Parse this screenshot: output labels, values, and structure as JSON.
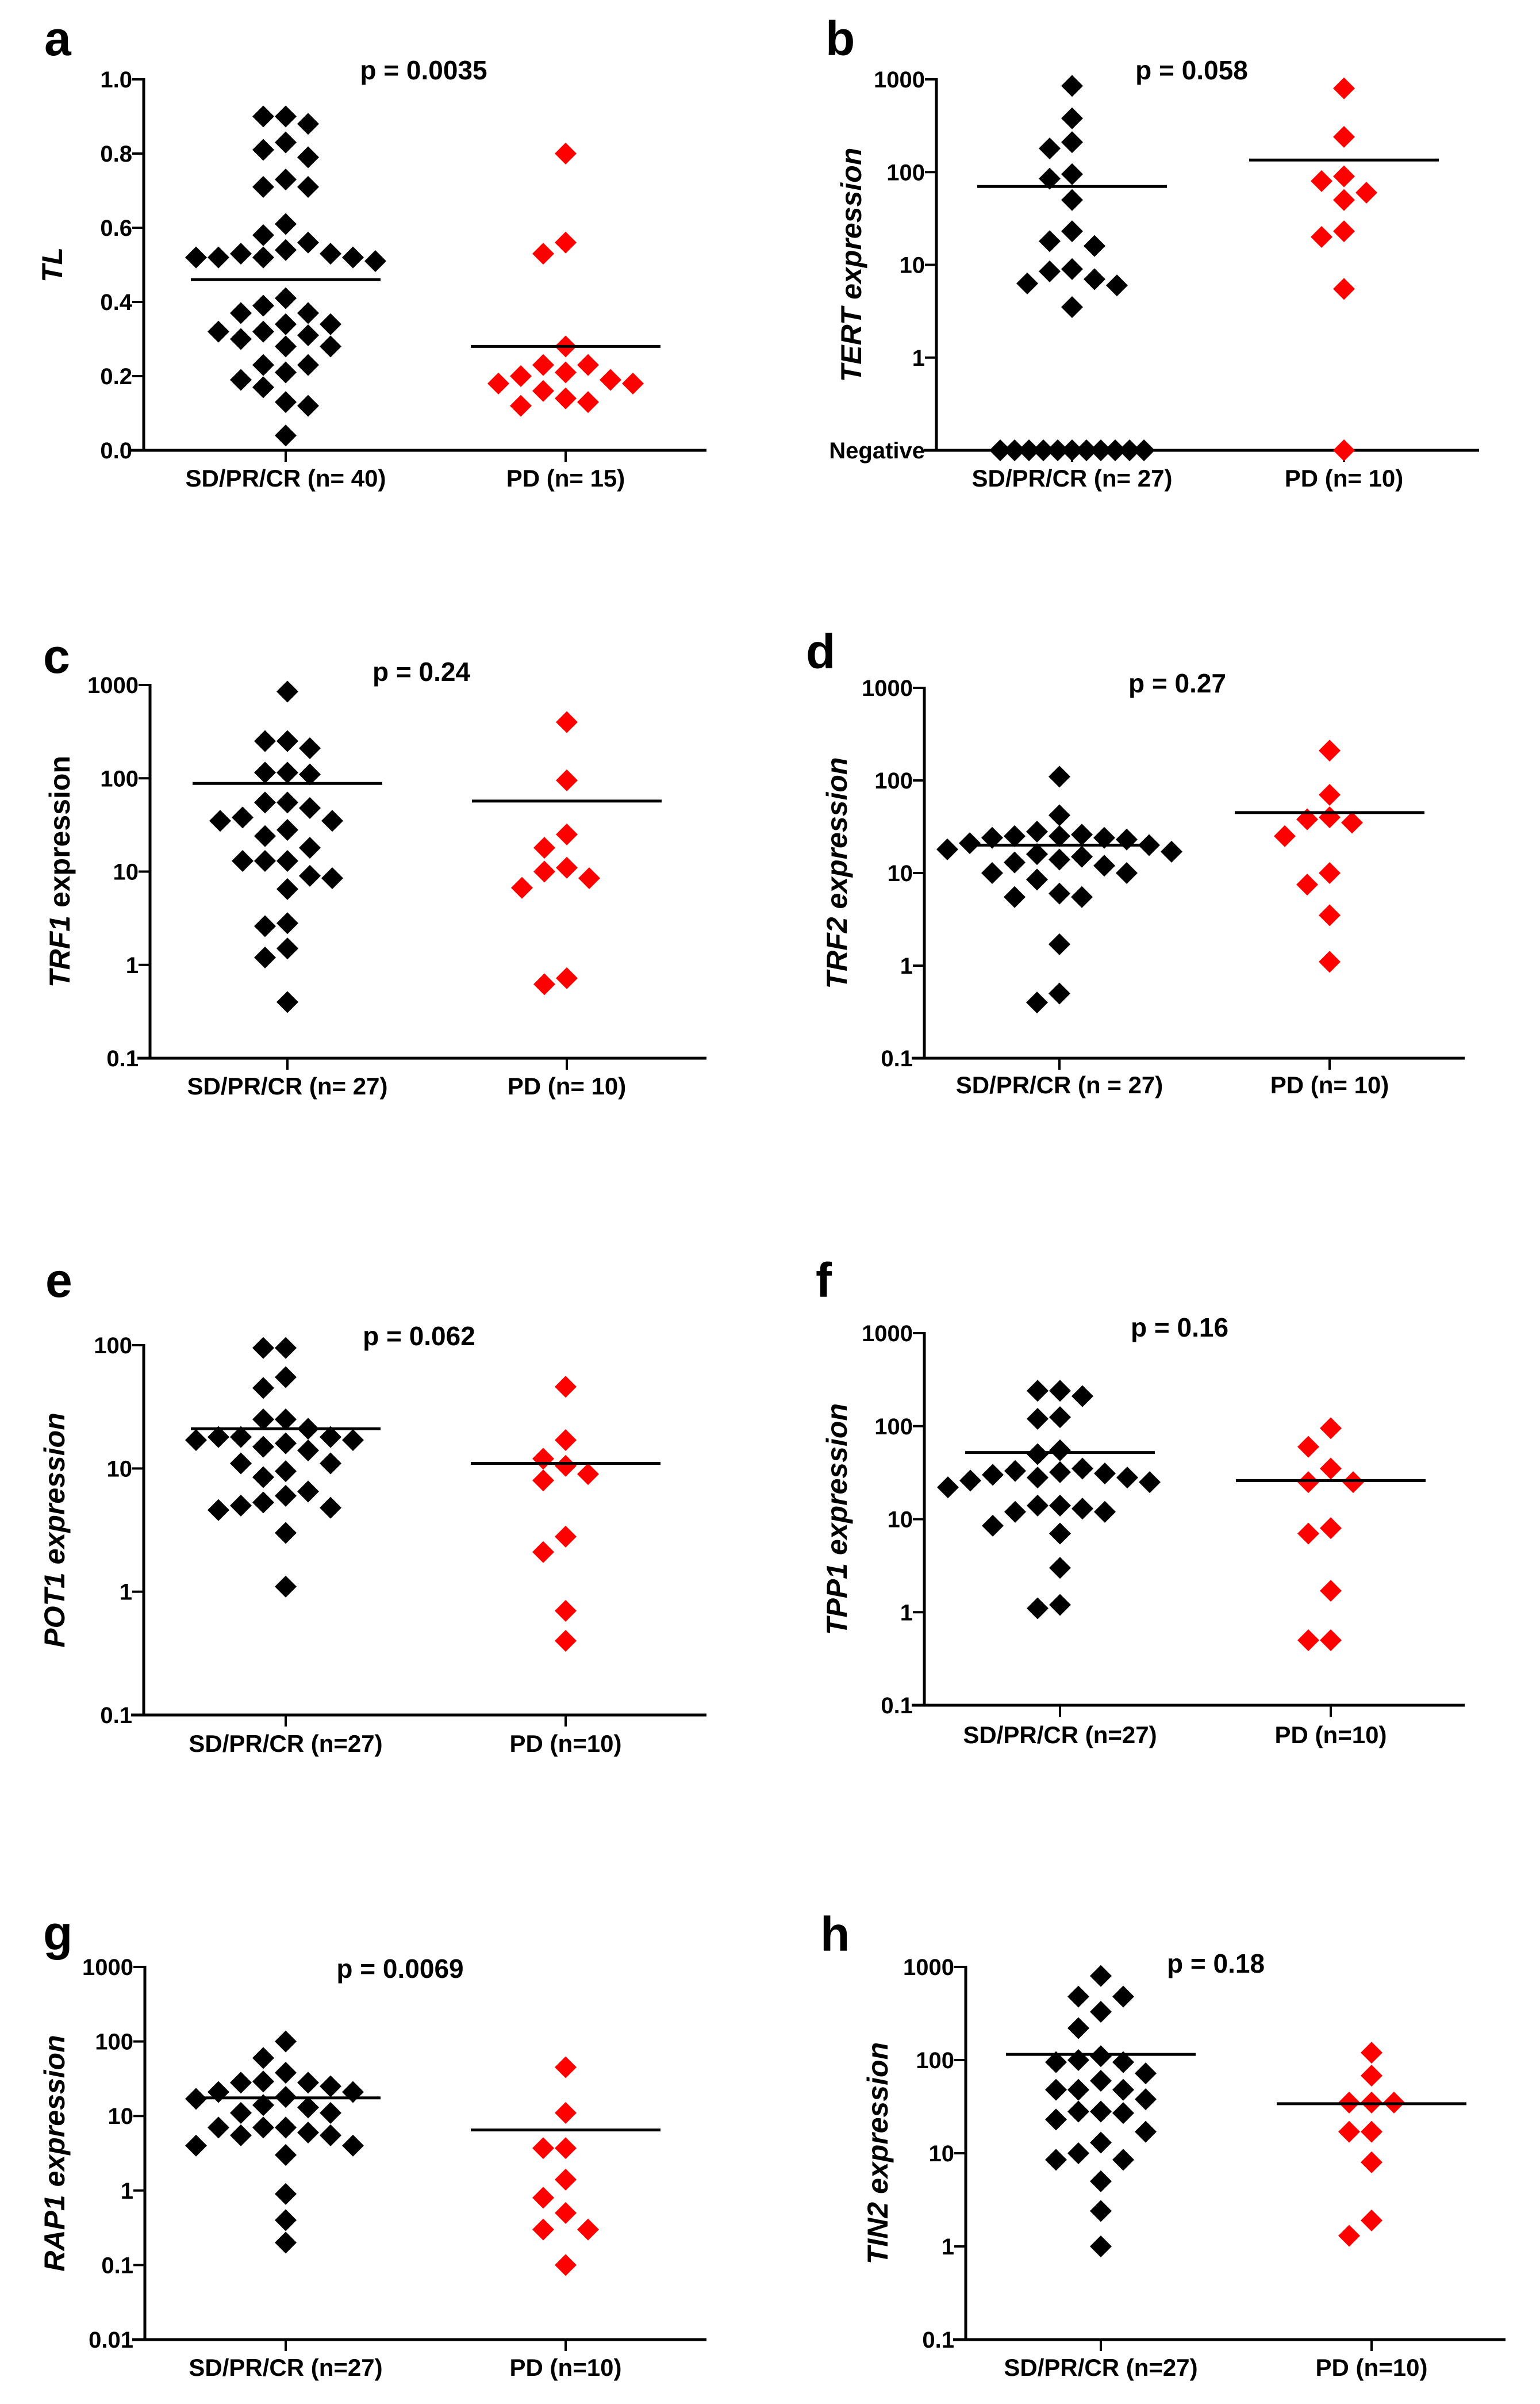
{
  "chart_data": [
    {
      "type": "scatter",
      "panel_label": "a",
      "p_value": "p = 0.0035",
      "ylabel": {
        "gene": "TL",
        "suffix": ""
      },
      "scale": "linear",
      "ylim": [
        0,
        1.0
      ],
      "yticks": [
        0,
        0.2,
        0.4,
        0.6,
        0.8,
        1.0
      ],
      "ytick_labels": [
        "0.0",
        "0.2",
        "0.4",
        "0.6",
        "0.8",
        "1.0"
      ],
      "categories": [
        "SD/PR/CR (n= 40)",
        "PD (n= 15)"
      ],
      "groups": [
        {
          "name": "SD/PR/CR",
          "color": "#000000",
          "mean": 0.46,
          "values": [
            0.9,
            0.88,
            0.9,
            0.83,
            0.79,
            0.81,
            0.71,
            0.71,
            0.73,
            0.61,
            0.58,
            0.56,
            0.54,
            0.53,
            0.52,
            0.52,
            0.51,
            0.52,
            0.52,
            0.53,
            0.41,
            0.39,
            0.37,
            0.37,
            0.34,
            0.34,
            0.32,
            0.31,
            0.28,
            0.28,
            0.3,
            0.32,
            0.23,
            0.19,
            0.21,
            0.23,
            0.17,
            0.13,
            0.12,
            0.04
          ]
        },
        {
          "name": "PD",
          "color": "#ff0000",
          "mean": 0.28,
          "values": [
            0.8,
            0.56,
            0.53,
            0.28,
            0.23,
            0.2,
            0.18,
            0.18,
            0.19,
            0.21,
            0.23,
            0.14,
            0.12,
            0.13,
            0.16
          ]
        }
      ]
    },
    {
      "type": "scatter",
      "panel_label": "b",
      "p_value": "p = 0.058",
      "ylabel": {
        "gene": "TERT",
        "suffix": " expression"
      },
      "scale": "log",
      "ylim": [
        0.1,
        1000
      ],
      "yticks": [
        1,
        10,
        100,
        1000
      ],
      "ytick_labels": [
        "1",
        "10",
        "100",
        "1000"
      ],
      "negative_label": "Negative",
      "categories": [
        "SD/PR/CR (n= 27)",
        "PD (n= 10)"
      ],
      "groups": [
        {
          "name": "SD/PR/CR",
          "color": "#000000",
          "mean": 70,
          "values": [
            850,
            380,
            180,
            210,
            95,
            85,
            50,
            18,
            16,
            23,
            8.5,
            6,
            6.3,
            7,
            9,
            3.5,
            null,
            null,
            null,
            null,
            null,
            null,
            null,
            null,
            null,
            null,
            null
          ]
        },
        {
          "name": "PD",
          "color": "#ff0000",
          "mean": 135,
          "values": [
            800,
            240,
            90,
            80,
            60,
            50,
            20,
            23,
            5.5,
            null
          ]
        }
      ]
    },
    {
      "type": "scatter",
      "panel_label": "c",
      "p_value": "p = 0.24",
      "ylabel": {
        "gene": "TRF1",
        "suffix": " expression"
      },
      "scale": "log",
      "ylim": [
        0.1,
        1000
      ],
      "yticks": [
        0.1,
        1,
        10,
        100,
        1000
      ],
      "ytick_labels": [
        "0.1",
        "1",
        "10",
        "100",
        "1000"
      ],
      "categories": [
        "SD/PR/CR (n= 27)",
        "PD (n= 10)"
      ],
      "groups": [
        {
          "name": "SD/PR/CR",
          "color": "#000000",
          "mean": 88,
          "values": [
            850,
            250,
            210,
            250,
            115,
            110,
            115,
            55,
            48,
            55,
            35,
            28,
            24,
            35,
            38,
            18,
            13,
            13,
            13,
            8.5,
            6.5,
            9,
            2.6,
            2.8,
            1.5,
            1.2,
            0.4
          ]
        },
        {
          "name": "PD",
          "color": "#ff0000",
          "mean": 57,
          "values": [
            400,
            95,
            25,
            18,
            11,
            8.5,
            6.7,
            10,
            0.62,
            0.72
          ]
        }
      ]
    },
    {
      "type": "scatter",
      "panel_label": "d",
      "p_value": "p = 0.27",
      "ylabel": {
        "gene": "TRF2",
        "suffix": " expression"
      },
      "scale": "log",
      "ylim": [
        0.1,
        1000
      ],
      "yticks": [
        0.1,
        1,
        10,
        100,
        1000
      ],
      "ytick_labels": [
        "0.1",
        "1",
        "10",
        "100",
        "1000"
      ],
      "categories": [
        "SD/PR/CR (n = 27)",
        "PD (n= 10)"
      ],
      "groups": [
        {
          "name": "SD/PR/CR",
          "color": "#000000",
          "mean": 20,
          "values": [
            110,
            42,
            25,
            24,
            23,
            25,
            28,
            26,
            24,
            20,
            21,
            16,
            15,
            13,
            17,
            14,
            10,
            10,
            12,
            8.5,
            6,
            5.5,
            5.5,
            1.7,
            0.4,
            0.5,
            18
          ]
        },
        {
          "name": "PD",
          "color": "#ff0000",
          "mean": 45,
          "values": [
            210,
            70,
            40,
            35,
            38,
            25,
            10,
            7.5,
            3.5,
            1.1
          ]
        }
      ]
    },
    {
      "type": "scatter",
      "panel_label": "e",
      "p_value": "p = 0.062",
      "ylabel": {
        "gene": "POT1",
        "suffix": " expression"
      },
      "scale": "log",
      "ylim": [
        0.1,
        100
      ],
      "yticks": [
        0.1,
        1,
        10,
        100
      ],
      "ytick_labels": [
        "0.1",
        "1",
        "10",
        "100"
      ],
      "categories": [
        "SD/PR/CR (n=27)",
        "PD (n=10)"
      ],
      "groups": [
        {
          "name": "SD/PR/CR",
          "color": "#000000",
          "mean": 21,
          "values": [
            95,
            95,
            55,
            45,
            25,
            25,
            21,
            18,
            18,
            18,
            17,
            17,
            16,
            15,
            14,
            11,
            11,
            9.5,
            8.5,
            6,
            6.5,
            5,
            4.8,
            4.6,
            5.3,
            3,
            1.1
          ]
        },
        {
          "name": "PD",
          "color": "#ff0000",
          "mean": 11,
          "values": [
            46,
            17,
            12,
            9,
            8,
            10.5,
            2.8,
            2.1,
            0.7,
            0.4
          ]
        }
      ]
    },
    {
      "type": "scatter",
      "panel_label": "f",
      "p_value": "p = 0.16",
      "ylabel": {
        "gene": "TPP1",
        "suffix": " expression"
      },
      "scale": "log",
      "ylim": [
        0.1,
        1000
      ],
      "yticks": [
        0.1,
        1,
        10,
        100,
        1000
      ],
      "ytick_labels": [
        "0.1",
        "1",
        "10",
        "100",
        "1000"
      ],
      "categories": [
        "SD/PR/CR (n=27)",
        "PD (n=10)"
      ],
      "groups": [
        {
          "name": "SD/PR/CR",
          "color": "#000000",
          "mean": 52,
          "values": [
            240,
            210,
            240,
            120,
            125,
            55,
            50,
            35,
            33,
            32,
            30,
            28,
            25,
            26,
            28,
            31,
            22,
            14,
            12,
            13,
            14,
            12,
            8.5,
            7,
            3,
            1.1,
            1.2
          ]
        },
        {
          "name": "PD",
          "color": "#ff0000",
          "mean": 26,
          "values": [
            95,
            60,
            35,
            25,
            25,
            8,
            7,
            1.7,
            0.5,
            0.5
          ]
        }
      ]
    },
    {
      "type": "scatter",
      "panel_label": "g",
      "p_value": "p = 0.0069",
      "ylabel": {
        "gene": "RAP1",
        "suffix": " expression"
      },
      "scale": "log",
      "ylim": [
        0.01,
        1000
      ],
      "yticks": [
        0.01,
        0.1,
        1,
        10,
        100,
        1000
      ],
      "ytick_labels": [
        "0.01",
        "0.1",
        "1",
        "10",
        "100",
        "1000"
      ],
      "categories": [
        "SD/PR/CR (n=27)",
        "PD (n=10)"
      ],
      "groups": [
        {
          "name": "SD/PR/CR",
          "color": "#000000",
          "mean": 17.5,
          "values": [
            100,
            60,
            38,
            28,
            29,
            28,
            25,
            21,
            18,
            17,
            21,
            13,
            14,
            11,
            11,
            7,
            7,
            7,
            5.5,
            5.5,
            6,
            4,
            4,
            3,
            0.9,
            0.4,
            0.2
          ]
        },
        {
          "name": "PD",
          "color": "#ff0000",
          "mean": 6.5,
          "values": [
            45,
            11,
            3.7,
            3.7,
            1.4,
            0.8,
            0.5,
            0.3,
            0.3,
            0.1
          ]
        }
      ]
    },
    {
      "type": "scatter",
      "panel_label": "h",
      "p_value": "p = 0.18",
      "ylabel": {
        "gene": "TIN2",
        "suffix": " expression"
      },
      "scale": "log",
      "ylim": [
        0.1,
        1000
      ],
      "yticks": [
        0.1,
        1,
        10,
        100,
        1000
      ],
      "ytick_labels": [
        "0.1",
        "1",
        "10",
        "100",
        "1000"
      ],
      "categories": [
        "SD/PR/CR (n=27)",
        "PD (n=10)"
      ],
      "groups": [
        {
          "name": "SD/PR/CR",
          "color": "#000000",
          "mean": 115,
          "values": [
            800,
            480,
            480,
            330,
            220,
            110,
            100,
            95,
            95,
            72,
            60,
            48,
            48,
            48,
            38,
            28,
            28,
            27,
            23,
            17,
            13,
            10,
            8.5,
            8.5,
            5,
            2.4,
            1
          ]
        },
        {
          "name": "PD",
          "color": "#ff0000",
          "mean": 34,
          "values": [
            120,
            68,
            35,
            35,
            35,
            17,
            17,
            8,
            1.9,
            1.3
          ]
        }
      ]
    }
  ]
}
